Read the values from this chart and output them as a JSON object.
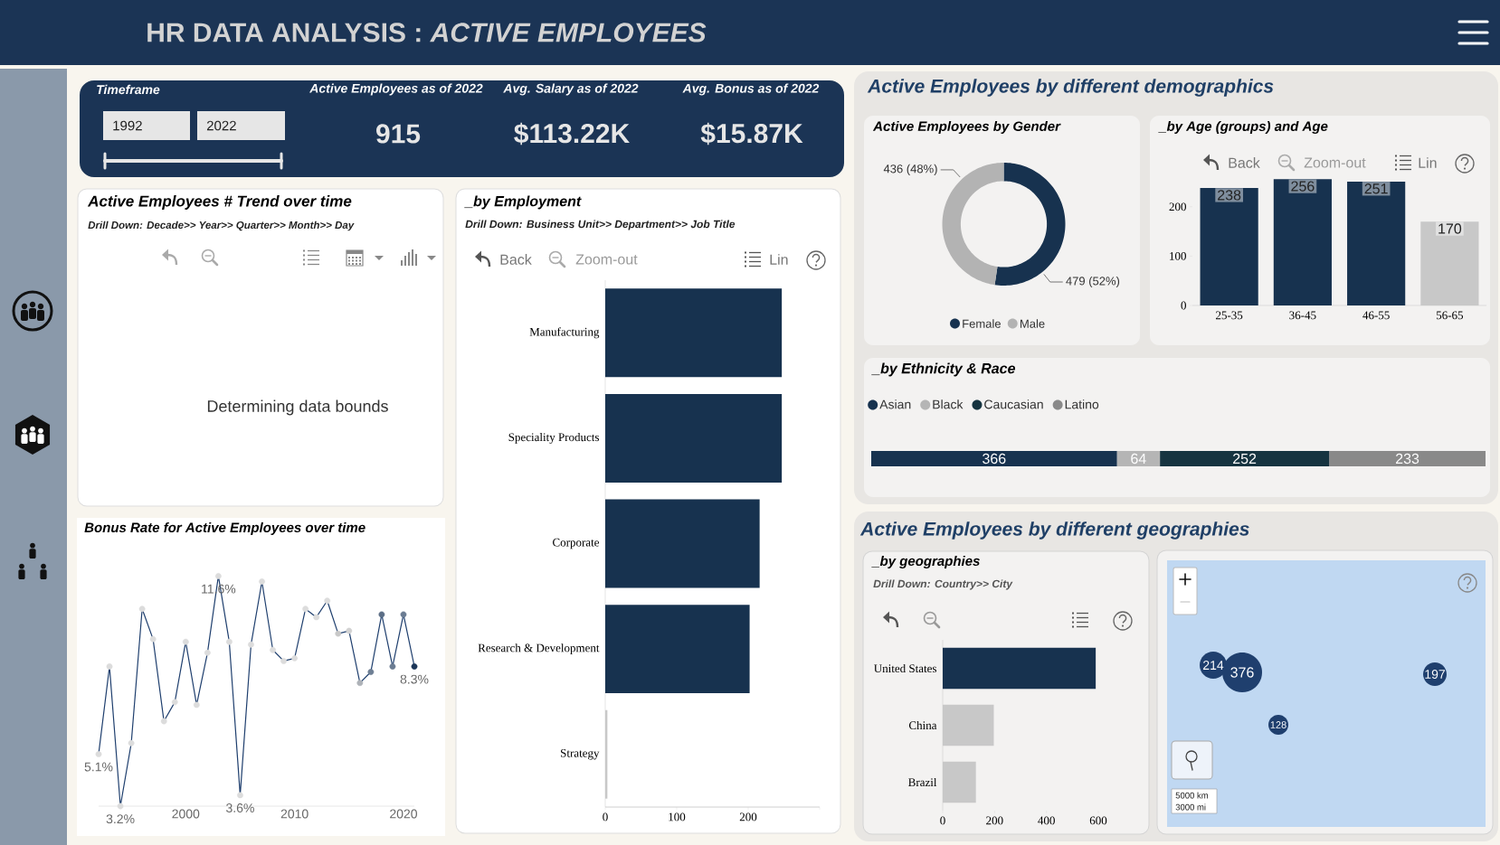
{
  "chart_data": [
    {
      "type": "other",
      "title": "HR DATA ANALYSIS : *ACTIVE EMPLOYEES*",
      "annotations": [
        "Timeframe",
        "1992",
        "2022",
        "Active Employees as of 2022",
        "915",
        "Avg. Salary as of 2022",
        "$113.22K",
        "Avg. Bonus as of 2022",
        "$15.87K"
      ]
    },
    {
      "type": "other",
      "title": "Active Employees # Trend over time",
      "subtitle": "Drill Down: Decade>> Year>> Quarter>> Month>> Day",
      "annotations": [
        "Determining data bounds"
      ]
    },
    {
      "type": "line",
      "title": "Bonus Rate for Active Employees over time",
      "x": [
        1992,
        1993,
        1994,
        1995,
        1996,
        1997,
        1998,
        1999,
        2000,
        2001,
        2002,
        2003,
        2004,
        2005,
        2006,
        2007,
        2008,
        2009,
        2010,
        2011,
        2012,
        2013,
        2014,
        2015,
        2016,
        2017,
        2018,
        2019,
        2020,
        2021
      ],
      "values": [
        5.1,
        8.3,
        3.2,
        5.5,
        10.4,
        9.3,
        6.3,
        7.0,
        9.2,
        6.9,
        8.8,
        11.6,
        9.2,
        3.6,
        9.1,
        11.4,
        8.9,
        8.5,
        8.6,
        10.4,
        10.1,
        10.7,
        9.5,
        9.6,
        7.7,
        8.1,
        10.2,
        8.3,
        10.2,
        8.3
      ],
      "value_labels": [
        "5.1%",
        null,
        "3.2%",
        null,
        null,
        null,
        null,
        null,
        null,
        null,
        null,
        "11.6%",
        null,
        "3.6%",
        null,
        null,
        null,
        null,
        null,
        null,
        null,
        null,
        null,
        null,
        null,
        null,
        null,
        null,
        null,
        "8.3%"
      ],
      "color": "#1f3f6e",
      "colors": [
        "#dcdcdc",
        "#dcdcdc",
        "#dcdcdc",
        "#dcdcdc",
        "#dcdcdc",
        "#dcdcdc",
        "#dcdcdc",
        "#dcdcdc",
        "#dcdcdc",
        "#dcdcdc",
        "#dcdcdc",
        "#dcdcdc",
        "#dcdcdc",
        "#dcdcdc",
        "#dcdcdc",
        "#dcdcdc",
        "#dcdcdc",
        "#dcdcdc",
        "#dcdcdc",
        "#dcdcdc",
        "#dcdcdc",
        "#dcdcdc",
        "#c8c8c8",
        "#d2d2d2",
        "#aeb2b8",
        "#6e7f94",
        "#5c6e86",
        "#6b7c92",
        "#6b7c92",
        "#1b3558"
      ],
      "marker": "circle",
      "xlim": [
        1992,
        2021
      ],
      "xticks": [
        2000,
        2010,
        2020
      ],
      "tick_labels": "x"
    },
    {
      "type": "bar",
      "orientation": "horizontal",
      "title": "_by Employment",
      "subtitle": "Drill Down: Business Unit>> Department>> Job Title",
      "categories": [
        "Manufacturing",
        "Speciality Products",
        "Corporate",
        "Research & Development",
        "Strategy"
      ],
      "values": [
        247,
        247,
        216,
        202,
        3
      ],
      "colors": [
        "#17324f",
        "#17324f",
        "#17324f",
        "#17324f",
        "#c8c8c8"
      ],
      "xlim": [
        0,
        300
      ],
      "xticks": [
        0,
        100,
        200,
        {
          "value": 300,
          "label": null
        }
      ],
      "annotations": [
        "Back",
        "Zoom-out",
        "Lin"
      ]
    },
    {
      "type": "other",
      "title": "Active Employees by different demographics"
    },
    {
      "type": "donut",
      "title": "Active Employees by Gender",
      "categories": [
        "Female",
        "Male"
      ],
      "values": [
        479,
        436
      ],
      "colors": [
        "#17324f",
        "#b3b3b3"
      ],
      "value_labels": [
        "479 (52%)",
        "436 (48%)"
      ],
      "legend": "bottom"
    },
    {
      "type": "bar",
      "title": "_by Age (groups) and Age",
      "categories": [
        "25-35",
        "36-45",
        "46-55",
        "56-65"
      ],
      "values": [
        238,
        256,
        251,
        170
      ],
      "colors": [
        "#17324f",
        "#17324f",
        "#17324f",
        "#c8c8c8"
      ],
      "ylim": [
        0,
        260
      ],
      "yticks": [
        0,
        100,
        200
      ],
      "data_labels": true,
      "annotations": [
        "Back",
        "Zoom-out",
        "Lin"
      ]
    },
    {
      "type": "bar",
      "orientation": "horizontal",
      "stacked": true,
      "title": "_by Ethnicity & Race",
      "categories": [
        null
      ],
      "series": [
        {
          "name": "Asian",
          "color": "#17324f",
          "values": [
            366
          ]
        },
        {
          "name": "Black",
          "color": "#b5b5b5",
          "values": [
            64
          ]
        },
        {
          "name": "Caucasian",
          "color": "#163440",
          "values": [
            252
          ]
        },
        {
          "name": "Latino",
          "color": "#898989",
          "values": [
            233
          ]
        }
      ],
      "xlim": [
        0,
        915
      ],
      "data_labels": true,
      "legend": "top left",
      "tick_labels": false
    },
    {
      "type": "other",
      "title": "Active Employees by different geographies"
    },
    {
      "type": "bar",
      "orientation": "horizontal",
      "title": "_by geographies",
      "subtitle": "Drill Down: Country>> City",
      "categories": [
        "United States",
        "China",
        "Brazil"
      ],
      "values": [
        590,
        197,
        128
      ],
      "colors": [
        "#17324f",
        "#c8c8c8",
        "#c8c8c8"
      ],
      "xlim": [
        0,
        600
      ],
      "xticks": [
        0,
        200,
        400,
        600
      ]
    },
    {
      "type": "other",
      "annotations": [
        "214",
        "376",
        "197",
        "128",
        "5000 km",
        "3000 mi"
      ]
    }
  ]
}
